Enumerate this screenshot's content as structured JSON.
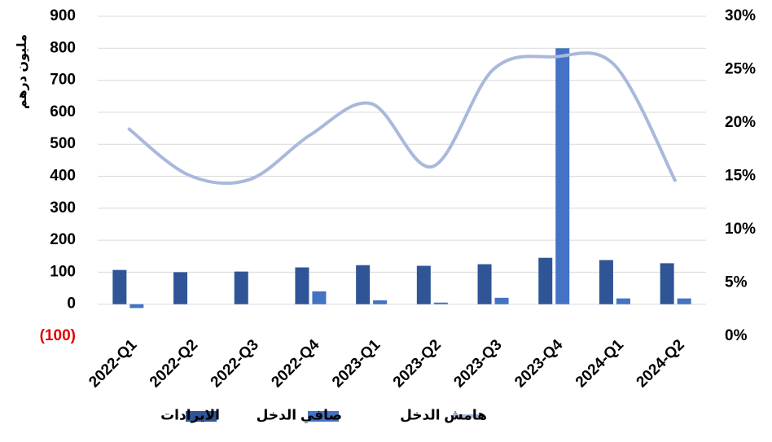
{
  "chart_data": {
    "type": "bar_line",
    "y_axis_label": "مليون درهم",
    "categories": [
      "2022-Q1",
      "2022-Q2",
      "2022-Q3",
      "2022-Q4",
      "2023-Q1",
      "2023-Q2",
      "2023-Q3",
      "2023-Q4",
      "2024-Q1",
      "2024-Q2"
    ],
    "series": [
      {
        "name": "الايرادات",
        "type": "bar",
        "color": "#2f5597",
        "values": [
          107,
          100,
          102,
          115,
          122,
          120,
          125,
          145,
          138,
          128
        ]
      },
      {
        "name": "صافي الدخل",
        "type": "bar",
        "color": "#4472c4",
        "values": [
          -12,
          0,
          0,
          40,
          12,
          5,
          20,
          800,
          18,
          18
        ]
      },
      {
        "name": "هامش الدخل",
        "type": "line",
        "axis": "y2",
        "color": "#a9b8dc",
        "values": [
          19.5,
          15.1,
          14.7,
          18.9,
          21.8,
          15.9,
          25,
          26.2,
          25.4,
          14.5
        ]
      }
    ],
    "ylim": [
      -100,
      900
    ],
    "yticks": [
      {
        "value": -100,
        "label": "(100)"
      },
      0,
      100,
      200,
      300,
      400,
      500,
      600,
      700,
      800,
      900
    ],
    "negative_tick_color": "#e00000",
    "y2lim": [
      0,
      30
    ],
    "y2ticks": [
      {
        "value": 0,
        "label": "0%"
      },
      {
        "value": 5,
        "label": "5%"
      },
      {
        "value": 10,
        "label": "10%"
      },
      {
        "value": 15,
        "label": "15%"
      },
      {
        "value": 20,
        "label": "20%"
      },
      {
        "value": 25,
        "label": "25%"
      },
      {
        "value": 30,
        "label": "30%"
      }
    ],
    "grid": true,
    "legend": "bottom"
  }
}
